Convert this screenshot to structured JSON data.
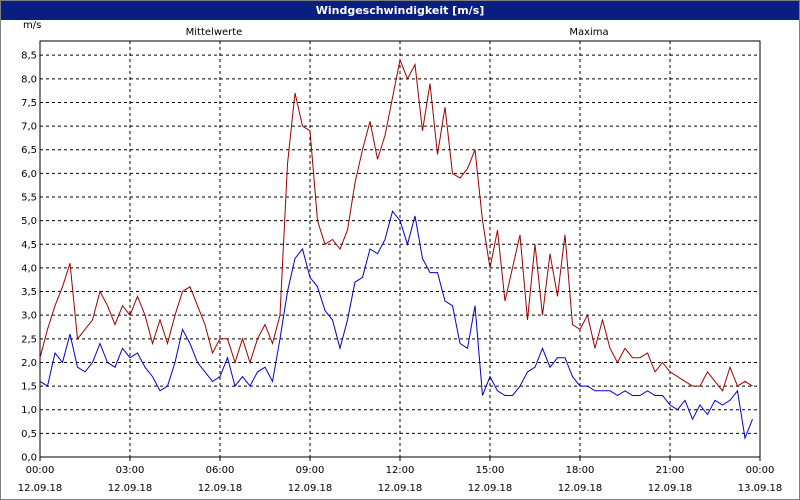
{
  "window": {
    "title": "Windgeschwindigkeit [m/s]"
  },
  "colors": {
    "mean": "#0000cc",
    "max": "#a00000",
    "grid": "#000000",
    "title_bar": "#0a1e82"
  },
  "chart_data": {
    "type": "line",
    "title": "Windgeschwindigkeit [m/s]",
    "ylabel": "m/s",
    "xlabel": "",
    "ylim": [
      0,
      8.8
    ],
    "xlim": [
      0,
      24
    ],
    "grid": true,
    "legend": "top",
    "y_ticks": [
      "0,0",
      "0,5",
      "1,0",
      "1,5",
      "2,0",
      "2,5",
      "3,0",
      "3,5",
      "4,0",
      "4,5",
      "5,0",
      "5,5",
      "6,0",
      "6,5",
      "7,0",
      "7,5",
      "8,0",
      "8,5"
    ],
    "x_ticks": [
      {
        "time": "00:00",
        "date": "12.09.18"
      },
      {
        "time": "03:00",
        "date": "12.09.18"
      },
      {
        "time": "06:00",
        "date": "12.09.18"
      },
      {
        "time": "09:00",
        "date": "12.09.18"
      },
      {
        "time": "12:00",
        "date": "12.09.18"
      },
      {
        "time": "15:00",
        "date": "12.09.18"
      },
      {
        "time": "18:00",
        "date": "12.09.18"
      },
      {
        "time": "21:00",
        "date": "12.09.18"
      },
      {
        "time": "00:00",
        "date": "13.09.18"
      }
    ],
    "series": [
      {
        "name": "Mittelwerte",
        "color": "#0000cc",
        "x": [
          0,
          0.25,
          0.5,
          0.75,
          1,
          1.25,
          1.5,
          1.75,
          2,
          2.25,
          2.5,
          2.75,
          3,
          3.25,
          3.5,
          3.75,
          4,
          4.25,
          4.5,
          4.75,
          5,
          5.25,
          5.5,
          5.75,
          6,
          6.25,
          6.5,
          6.75,
          7,
          7.25,
          7.5,
          7.75,
          8,
          8.25,
          8.5,
          8.75,
          9,
          9.25,
          9.5,
          9.75,
          10,
          10.25,
          10.5,
          10.75,
          11,
          11.25,
          11.5,
          11.75,
          12,
          12.25,
          12.5,
          12.75,
          13,
          13.25,
          13.5,
          13.75,
          14,
          14.25,
          14.5,
          14.75,
          15,
          15.25,
          15.5,
          15.75,
          16,
          16.25,
          16.5,
          16.75,
          17,
          17.25,
          17.5,
          17.75,
          18,
          18.25,
          18.5,
          18.75,
          19,
          19.25,
          19.5,
          19.75,
          20,
          20.25,
          20.5,
          20.75,
          21,
          21.25,
          21.5,
          21.75,
          22,
          22.25,
          22.5,
          22.75,
          23,
          23.25,
          23.5,
          23.75
        ],
        "values": [
          1.6,
          1.5,
          2.2,
          2.0,
          2.6,
          1.9,
          1.8,
          2.0,
          2.4,
          2.0,
          1.9,
          2.3,
          2.1,
          2.2,
          1.9,
          1.7,
          1.4,
          1.5,
          2.0,
          2.7,
          2.4,
          2.0,
          1.8,
          1.6,
          1.7,
          2.1,
          1.5,
          1.7,
          1.5,
          1.8,
          1.9,
          1.6,
          2.5,
          3.5,
          4.2,
          4.4,
          3.8,
          3.6,
          3.1,
          2.9,
          2.3,
          2.9,
          3.7,
          3.8,
          4.4,
          4.3,
          4.6,
          5.2,
          5.0,
          4.5,
          5.1,
          4.2,
          3.9,
          3.9,
          3.3,
          3.2,
          2.4,
          2.3,
          3.2,
          1.3,
          1.7,
          1.4,
          1.3,
          1.3,
          1.5,
          1.8,
          1.9,
          2.3,
          1.9,
          2.1,
          2.1,
          1.7,
          1.5,
          1.5,
          1.4,
          1.4,
          1.4,
          1.3,
          1.4,
          1.3,
          1.3,
          1.4,
          1.3,
          1.3,
          1.1,
          1.0,
          1.2,
          0.8,
          1.1,
          0.9,
          1.2,
          1.1,
          1.2,
          1.4,
          0.4,
          0.8
        ]
      },
      {
        "name": "Maxima",
        "color": "#a00000",
        "x": [
          0,
          0.25,
          0.5,
          0.75,
          1,
          1.25,
          1.5,
          1.75,
          2,
          2.25,
          2.5,
          2.75,
          3,
          3.25,
          3.5,
          3.75,
          4,
          4.25,
          4.5,
          4.75,
          5,
          5.25,
          5.5,
          5.75,
          6,
          6.25,
          6.5,
          6.75,
          7,
          7.25,
          7.5,
          7.75,
          8,
          8.25,
          8.5,
          8.75,
          9,
          9.25,
          9.5,
          9.75,
          10,
          10.25,
          10.5,
          10.75,
          11,
          11.25,
          11.5,
          11.75,
          12,
          12.25,
          12.5,
          12.75,
          13,
          13.25,
          13.5,
          13.75,
          14,
          14.25,
          14.5,
          14.75,
          15,
          15.25,
          15.5,
          15.75,
          16,
          16.25,
          16.5,
          16.75,
          17,
          17.25,
          17.5,
          17.75,
          18,
          18.25,
          18.5,
          18.75,
          19,
          19.25,
          19.5,
          19.75,
          20,
          20.25,
          20.5,
          20.75,
          21,
          21.25,
          21.5,
          21.75,
          22,
          22.25,
          22.5,
          22.75,
          23,
          23.25,
          23.5,
          23.75
        ],
        "values": [
          2.1,
          2.7,
          3.2,
          3.6,
          4.1,
          2.5,
          2.7,
          2.9,
          3.5,
          3.2,
          2.8,
          3.2,
          3.0,
          3.4,
          3.0,
          2.4,
          2.9,
          2.4,
          3.0,
          3.5,
          3.6,
          3.2,
          2.8,
          2.2,
          2.5,
          2.5,
          2.0,
          2.5,
          2.0,
          2.5,
          2.8,
          2.4,
          3.0,
          6.2,
          7.7,
          7.0,
          6.9,
          5.0,
          4.5,
          4.6,
          4.4,
          4.8,
          5.8,
          6.5,
          7.1,
          6.3,
          6.8,
          7.6,
          8.4,
          8.0,
          8.3,
          6.9,
          7.9,
          6.4,
          7.4,
          6.0,
          5.9,
          6.1,
          6.5,
          5.0,
          4.0,
          4.8,
          3.3,
          4.0,
          4.7,
          2.9,
          4.5,
          3.0,
          4.3,
          3.4,
          4.7,
          2.8,
          2.7,
          3.0,
          2.3,
          2.9,
          2.3,
          2.0,
          2.3,
          2.1,
          2.1,
          2.2,
          1.8,
          2.0,
          1.8,
          1.7,
          1.6,
          1.5,
          1.5,
          1.8,
          1.6,
          1.4,
          1.9,
          1.5,
          1.6,
          1.5
        ]
      }
    ]
  }
}
